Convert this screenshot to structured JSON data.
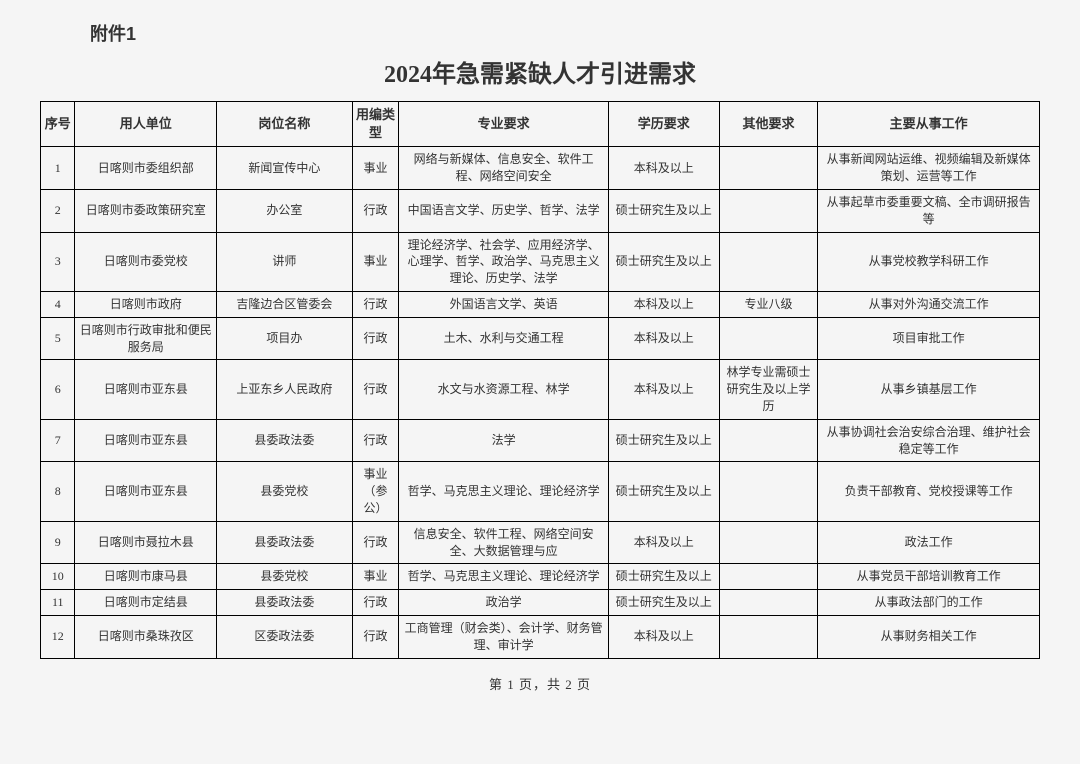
{
  "attachment_label": "附件1",
  "title": "2024年急需紧缺人才引进需求",
  "columns": [
    "序号",
    "用人单位",
    "岗位名称",
    "用编类型",
    "专业要求",
    "学历要求",
    "其他要求",
    "主要从事工作"
  ],
  "rows": [
    {
      "seq": "1",
      "unit": "日喀则市委组织部",
      "post": "新闻宣传中心",
      "type": "事业",
      "major": "网络与新媒体、信息安全、软件工程、网络空间安全",
      "edu": "本科及以上",
      "other": "",
      "work": "从事新闻网站运维、视频编辑及新媒体策划、运营等工作"
    },
    {
      "seq": "2",
      "unit": "日喀则市委政策研究室",
      "post": "办公室",
      "type": "行政",
      "major": "中国语言文学、历史学、哲学、法学",
      "edu": "硕士研究生及以上",
      "other": "",
      "work": "从事起草市委重要文稿、全市调研报告等"
    },
    {
      "seq": "3",
      "unit": "日喀则市委党校",
      "post": "讲师",
      "type": "事业",
      "major": "理论经济学、社会学、应用经济学、心理学、哲学、政治学、马克思主义理论、历史学、法学",
      "edu": "硕士研究生及以上",
      "other": "",
      "work": "从事党校教学科研工作"
    },
    {
      "seq": "4",
      "unit": "日喀则市政府",
      "post": "吉隆边合区管委会",
      "type": "行政",
      "major": "外国语言文学、英语",
      "edu": "本科及以上",
      "other": "专业八级",
      "work": "从事对外沟通交流工作"
    },
    {
      "seq": "5",
      "unit": "日喀则市行政审批和便民服务局",
      "post": "项目办",
      "type": "行政",
      "major": "土木、水利与交通工程",
      "edu": "本科及以上",
      "other": "",
      "work": "项目审批工作"
    },
    {
      "seq": "6",
      "unit": "日喀则市亚东县",
      "post": "上亚东乡人民政府",
      "type": "行政",
      "major": "水文与水资源工程、林学",
      "edu": "本科及以上",
      "other": "林学专业需硕士研究生及以上学历",
      "work": "从事乡镇基层工作"
    },
    {
      "seq": "7",
      "unit": "日喀则市亚东县",
      "post": "县委政法委",
      "type": "行政",
      "major": "法学",
      "edu": "硕士研究生及以上",
      "other": "",
      "work": "从事协调社会治安综合治理、维护社会稳定等工作"
    },
    {
      "seq": "8",
      "unit": "日喀则市亚东县",
      "post": "县委党校",
      "type": "事业（参公）",
      "major": "哲学、马克思主义理论、理论经济学",
      "edu": "硕士研究生及以上",
      "other": "",
      "work": "负责干部教育、党校授课等工作"
    },
    {
      "seq": "9",
      "unit": "日喀则市聂拉木县",
      "post": "县委政法委",
      "type": "行政",
      "major": "信息安全、软件工程、网络空间安全、大数据管理与应",
      "edu": "本科及以上",
      "other": "",
      "work": "政法工作"
    },
    {
      "seq": "10",
      "unit": "日喀则市康马县",
      "post": "县委党校",
      "type": "事业",
      "major": "哲学、马克思主义理论、理论经济学",
      "edu": "硕士研究生及以上",
      "other": "",
      "work": "从事党员干部培训教育工作"
    },
    {
      "seq": "11",
      "unit": "日喀则市定结县",
      "post": "县委政法委",
      "type": "行政",
      "major": "政治学",
      "edu": "硕士研究生及以上",
      "other": "",
      "work": "从事政法部门的工作"
    },
    {
      "seq": "12",
      "unit": "日喀则市桑珠孜区",
      "post": "区委政法委",
      "type": "行政",
      "major": "工商管理（财会类）、会计学、财务管理、审计学",
      "edu": "本科及以上",
      "other": "",
      "work": "从事财务相关工作"
    }
  ],
  "pagination": "第 1 页，共 2 页"
}
